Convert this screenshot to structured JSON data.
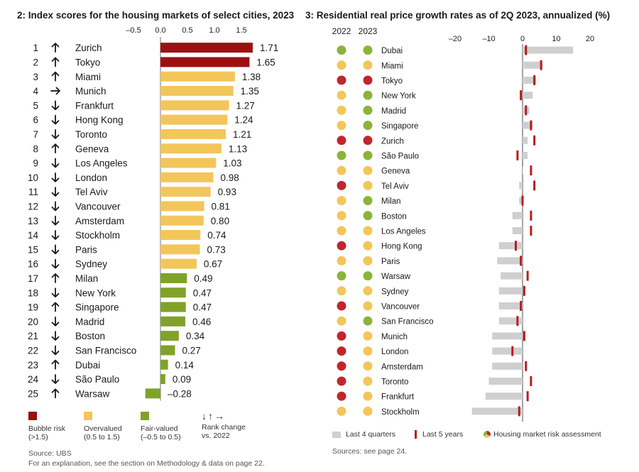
{
  "colors": {
    "bubble": "#9b1111",
    "overvalued": "#f3c65a",
    "fair": "#7fa329",
    "grey": "#cfcfcf",
    "red_marker": "#b71c1c",
    "dot_red": "#c0262d",
    "dot_yellow": "#f3c65a",
    "dot_green": "#8cb33a"
  },
  "left": {
    "title": "2: Index scores for the housing markets of select cities, 2023",
    "legend": {
      "bubble": "Bubble risk\n(>1.5)",
      "overvalued": "Overvalued\n(0.5 to 1.5)",
      "fair": "Fair-valued\n(–0.5 to 0.5)",
      "arrows": "↓↑→",
      "rank": "Rank change\nvs. 2022"
    },
    "source": "Source: UBS",
    "note": "For an explanation, see the section on Methodology & data on page 22."
  },
  "right": {
    "title": "3: Residential real price growth rates as of 2Q 2023, annualized (%)",
    "year_2022": "2022",
    "year_2023": "2023",
    "legend": {
      "grey": "Last 4 quarters",
      "red": "Last 5 years",
      "risk": "Housing market risk assessment"
    },
    "source": "Sources: see page 24."
  },
  "chart_data": [
    {
      "type": "bar",
      "title": "2: Index scores for the housing markets of select cities, 2023",
      "x_ticks": [
        "–0.5",
        "0.0",
        "0.5",
        "1.0",
        "1.5"
      ],
      "xlim": [
        -0.5,
        1.8
      ],
      "categories": [
        "Zurich",
        "Tokyo",
        "Miami",
        "Munich",
        "Frankfurt",
        "Hong Kong",
        "Toronto",
        "Geneva",
        "Los Angeles",
        "London",
        "Tel Aviv",
        "Vancouver",
        "Amsterdam",
        "Stockholm",
        "Paris",
        "Sydney",
        "Milan",
        "New York",
        "Singapore",
        "Madrid",
        "Boston",
        "San Francisco",
        "Dubai",
        "São Paulo",
        "Warsaw"
      ],
      "ranks": [
        "1",
        "2",
        "3",
        "4",
        "5",
        "6",
        "7",
        "8",
        "9",
        "10",
        "11",
        "12",
        "13",
        "14",
        "15",
        "16",
        "17",
        "18",
        "19",
        "20",
        "21",
        "22",
        "23",
        "24",
        "25"
      ],
      "rank_change": [
        "up",
        "up",
        "up",
        "right",
        "down",
        "down",
        "down",
        "up",
        "down",
        "down",
        "down",
        "down",
        "down",
        "down",
        "down",
        "down",
        "up",
        "down",
        "up",
        "down",
        "down",
        "down",
        "up",
        "down",
        "up"
      ],
      "values": [
        1.71,
        1.65,
        1.38,
        1.35,
        1.27,
        1.24,
        1.21,
        1.13,
        1.03,
        0.98,
        0.93,
        0.81,
        0.8,
        0.74,
        0.73,
        0.67,
        0.49,
        0.47,
        0.47,
        0.46,
        0.34,
        0.27,
        0.14,
        0.09,
        -0.28
      ],
      "labels": [
        "1.71",
        "1.65",
        "1.38",
        "1.35",
        "1.27",
        "1.24",
        "1.21",
        "1.13",
        "1.03",
        "0.98",
        "0.93",
        "0.81",
        "0.80",
        "0.74",
        "0.73",
        "0.67",
        "0.49",
        "0.47",
        "0.47",
        "0.46",
        "0.34",
        "0.27",
        "0.14",
        "0.09",
        "–0.28"
      ]
    },
    {
      "type": "bar",
      "title": "3: Residential real price growth rates as of 2Q 2023, annualized (%)",
      "x_ticks": [
        "–20",
        "–10",
        "0",
        "10",
        "20"
      ],
      "xlim": [
        -25,
        22
      ],
      "categories": [
        "Dubai",
        "Miami",
        "Tokyo",
        "New York",
        "Madrid",
        "Singapore",
        "Zurich",
        "São Paulo",
        "Geneva",
        "Tel Aviv",
        "Milan",
        "Boston",
        "Los Angeles",
        "Hong Kong",
        "Paris",
        "Warsaw",
        "Sydney",
        "Vancouver",
        "San Francisco",
        "Munich",
        "London",
        "Amsterdam",
        "Toronto",
        "Frankfurt",
        "Stockholm"
      ],
      "series": [
        {
          "name": "Last 4 quarters",
          "values": [
            15,
            6,
            4,
            3,
            2,
            3,
            1.5,
            1.5,
            0,
            -1,
            -1,
            -3,
            -3,
            -7,
            -7.5,
            -6.5,
            -7,
            -7,
            -7,
            -9,
            -9,
            -9,
            -10,
            -11,
            -15
          ]
        },
        {
          "name": "Last 5 years",
          "values": [
            1,
            5.5,
            3.5,
            -0.5,
            1,
            2.5,
            3.5,
            -1.5,
            2.5,
            3.5,
            0,
            2.5,
            2.5,
            -2,
            -0.5,
            1.5,
            0.5,
            -0.5,
            -1.5,
            0.5,
            -3,
            1,
            2.5,
            1.5,
            -1
          ]
        }
      ],
      "risk_2022": [
        "green",
        "yellow",
        "red",
        "yellow",
        "yellow",
        "yellow",
        "red",
        "green",
        "yellow",
        "red",
        "yellow",
        "yellow",
        "yellow",
        "red",
        "yellow",
        "green",
        "yellow",
        "red",
        "yellow",
        "red",
        "red",
        "red",
        "red",
        "red",
        "yellow"
      ],
      "risk_2023": [
        "green",
        "yellow",
        "red",
        "green",
        "green",
        "green",
        "red",
        "green",
        "yellow",
        "yellow",
        "green",
        "green",
        "yellow",
        "yellow",
        "yellow",
        "green",
        "yellow",
        "yellow",
        "green",
        "yellow",
        "yellow",
        "yellow",
        "yellow",
        "yellow",
        "yellow"
      ]
    }
  ]
}
